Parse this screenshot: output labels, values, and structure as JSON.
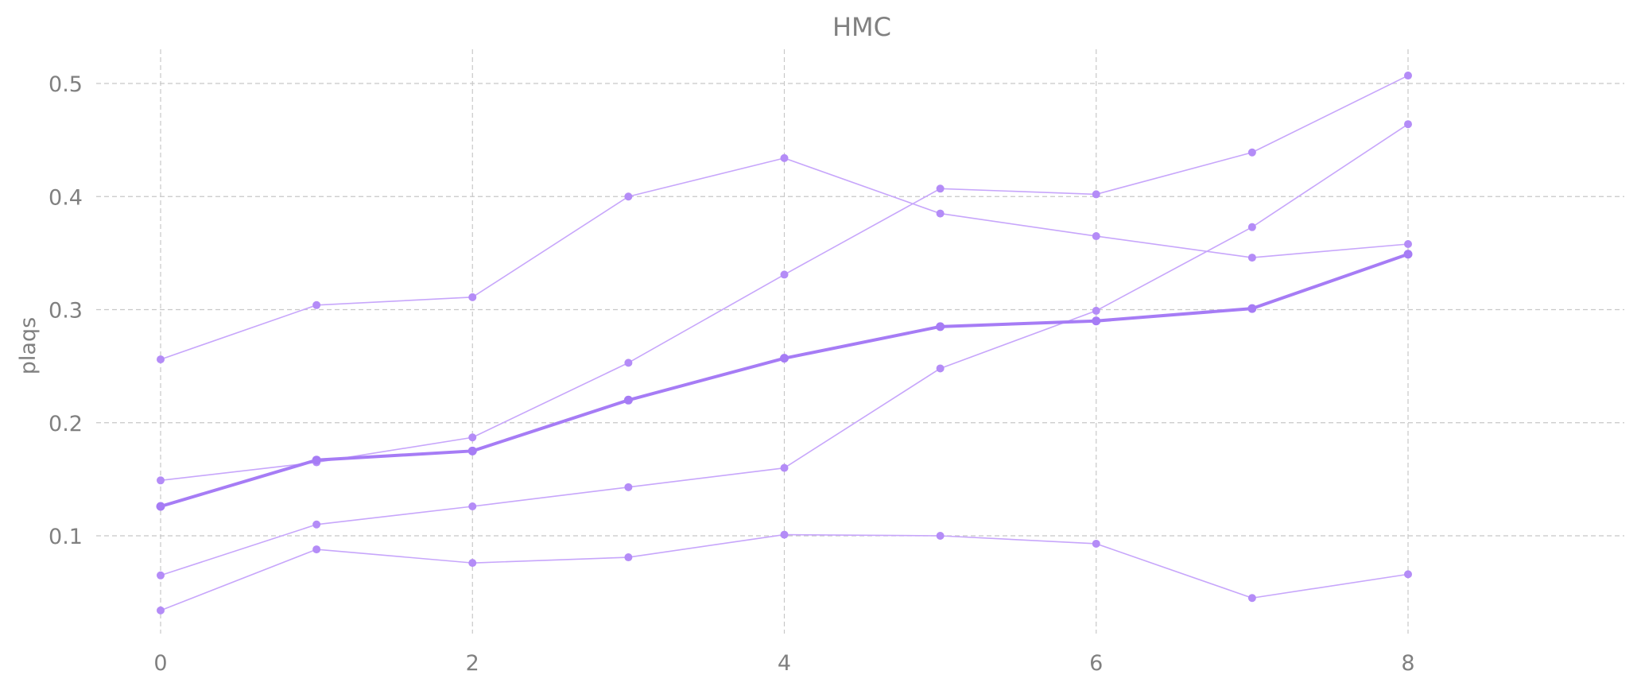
{
  "chart_data": {
    "type": "line",
    "title": "HMC",
    "xlabel": "",
    "ylabel": "plaqs",
    "xlim": [
      -0.4,
      9.4
    ],
    "ylim": [
      0.0,
      0.53
    ],
    "xticks": [
      0,
      2,
      4,
      6,
      8
    ],
    "xtick_labels": [
      "0",
      "2",
      "4",
      "6",
      "8"
    ],
    "yticks": [
      0.1,
      0.2,
      0.3,
      0.4,
      0.5
    ],
    "ytick_labels": [
      "0.1",
      "0.2",
      "0.3",
      "0.4",
      "0.5"
    ],
    "grid": true,
    "legend": "none",
    "x": [
      0,
      1,
      2,
      3,
      4,
      5,
      6,
      7,
      8
    ],
    "series": [
      {
        "values": [
          0.256,
          0.304,
          0.311,
          0.4,
          0.434,
          0.385,
          0.365,
          0.346,
          0.358
        ],
        "style": "thin"
      },
      {
        "values": [
          0.149,
          0.165,
          0.187,
          0.253,
          0.331,
          0.407,
          0.402,
          0.439,
          0.507
        ],
        "style": "thin"
      },
      {
        "values": [
          0.065,
          0.11,
          0.126,
          0.143,
          0.16,
          0.248,
          0.299,
          0.373,
          0.464
        ],
        "style": "thin"
      },
      {
        "values": [
          0.034,
          0.088,
          0.076,
          0.081,
          0.101,
          0.1,
          0.093,
          0.045,
          0.066
        ],
        "style": "thin"
      },
      {
        "values": [
          0.126,
          0.167,
          0.175,
          0.22,
          0.257,
          0.285,
          0.29,
          0.301,
          0.349
        ],
        "style": "mean"
      }
    ],
    "colors": {
      "thin_line": "#c7a6fb",
      "thin_marker": "#b48cf7",
      "mean_line": "#a67cf5",
      "mean_marker": "#a67cf5"
    }
  }
}
